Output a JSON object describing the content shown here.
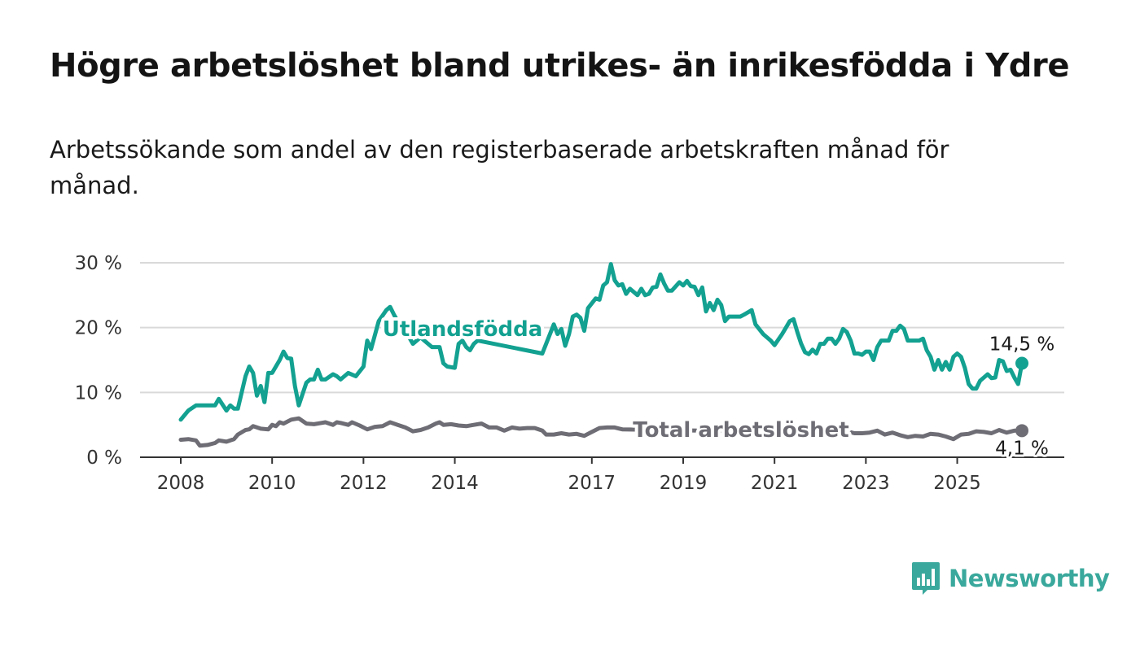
{
  "title": "Högre arbetslöshet bland utrikes- än inrikesfödda i Ydre",
  "subtitle": "Arbetssökande som andel av den registerbaserade arbetskraften månad för månad.",
  "logo": {
    "text": "Newsworthy",
    "icon": "bar-chart-speech-bubble-icon",
    "color": "#3aa89c"
  },
  "chart_data": {
    "type": "line",
    "title": "Högre arbetslöshet bland utrikes- än inrikesfödda i Ydre",
    "subtitle": "Arbetssökande som andel av den registerbaserade arbetskraften månad för månad.",
    "ylabel": "",
    "xlabel": "",
    "ylim": [
      0,
      30
    ],
    "y_ticks": [
      0,
      10,
      20,
      30
    ],
    "y_tick_labels": [
      "0 %",
      "10 %",
      "20 %",
      "30 %"
    ],
    "x_range": [
      "2008-01",
      "2026-06"
    ],
    "x_ticks": [
      "2008-01",
      "2010-01",
      "2012-01",
      "2014-01",
      "2017-01",
      "2019-01",
      "2021-01",
      "2023-01",
      "2025-01"
    ],
    "x_tick_labels": [
      "2008",
      "2010",
      "2012",
      "2014",
      "2017",
      "2019",
      "2021",
      "2023",
      "2025"
    ],
    "grid": true,
    "series": [
      {
        "name": "Utlandsfödda",
        "color": "#13a191",
        "end_label": "14,5 %",
        "points": [
          [
            "2008-01",
            5.8
          ],
          [
            "2008-03",
            7.2
          ],
          [
            "2008-05",
            8
          ],
          [
            "2008-08",
            8
          ],
          [
            "2008-10",
            8
          ],
          [
            "2008-11",
            9
          ],
          [
            "2009-01",
            7.2
          ],
          [
            "2009-02",
            8
          ],
          [
            "2009-03",
            7.5
          ],
          [
            "2009-04",
            7.5
          ],
          [
            "2009-06",
            12.5
          ],
          [
            "2009-07",
            14
          ],
          [
            "2009-08",
            13
          ],
          [
            "2009-09",
            9.5
          ],
          [
            "2009-10",
            11
          ],
          [
            "2009-11",
            8.5
          ],
          [
            "2009-12",
            13
          ],
          [
            "2010-01",
            13
          ],
          [
            "2010-03",
            15
          ],
          [
            "2010-04",
            16.3
          ],
          [
            "2010-05",
            15.3
          ],
          [
            "2010-06",
            15.2
          ],
          [
            "2010-07",
            11
          ],
          [
            "2010-08",
            8
          ],
          [
            "2010-10",
            11.5
          ],
          [
            "2010-11",
            12
          ],
          [
            "2010-12",
            12
          ],
          [
            "2011-01",
            13.5
          ],
          [
            "2011-02",
            12
          ],
          [
            "2011-03",
            12
          ],
          [
            "2011-05",
            12.8
          ],
          [
            "2011-06",
            12.5
          ],
          [
            "2011-07",
            12
          ],
          [
            "2011-09",
            13
          ],
          [
            "2011-11",
            12.5
          ],
          [
            "2012-01",
            14
          ],
          [
            "2012-02",
            18
          ],
          [
            "2012-03",
            16.7
          ],
          [
            "2012-05",
            21
          ],
          [
            "2012-07",
            22.7
          ],
          [
            "2012-08",
            23.2
          ],
          [
            "2012-09",
            22
          ],
          [
            "2012-11",
            20
          ],
          [
            "2013-01",
            18.5
          ],
          [
            "2013-02",
            17.5
          ],
          [
            "2013-04",
            18.5
          ],
          [
            "2013-05",
            18
          ],
          [
            "2013-07",
            17
          ],
          [
            "2013-09",
            17
          ],
          [
            "2013-10",
            14.5
          ],
          [
            "2013-11",
            14
          ],
          [
            "2014-01",
            13.8
          ],
          [
            "2014-02",
            17.5
          ],
          [
            "2014-03",
            18
          ],
          [
            "2014-04",
            17
          ],
          [
            "2014-05",
            16.5
          ],
          [
            "2014-06",
            17.5
          ],
          [
            "2014-07",
            18
          ],
          [
            "2015-12",
            16
          ],
          [
            "2016-01",
            17.5
          ],
          [
            "2016-03",
            20.5
          ],
          [
            "2016-04",
            19
          ],
          [
            "2016-05",
            19.8
          ],
          [
            "2016-06",
            17.2
          ],
          [
            "2016-07",
            19
          ],
          [
            "2016-08",
            21.7
          ],
          [
            "2016-09",
            22
          ],
          [
            "2016-10",
            21.5
          ],
          [
            "2016-11",
            19.5
          ],
          [
            "2016-12",
            23
          ],
          [
            "2017-02",
            24.5
          ],
          [
            "2017-03",
            24.3
          ],
          [
            "2017-04",
            26.5
          ],
          [
            "2017-05",
            27
          ],
          [
            "2017-06",
            29.8
          ],
          [
            "2017-07",
            27.3
          ],
          [
            "2017-08",
            26.5
          ],
          [
            "2017-09",
            26.7
          ],
          [
            "2017-10",
            25.2
          ],
          [
            "2017-11",
            26
          ],
          [
            "2018-01",
            25
          ],
          [
            "2018-02",
            26
          ],
          [
            "2018-03",
            25
          ],
          [
            "2018-04",
            25.2
          ],
          [
            "2018-05",
            26.2
          ],
          [
            "2018-06",
            26.3
          ],
          [
            "2018-07",
            28.2
          ],
          [
            "2018-08",
            26.8
          ],
          [
            "2018-09",
            25.7
          ],
          [
            "2018-10",
            25.7
          ],
          [
            "2018-12",
            27
          ],
          [
            "2019-01",
            26.5
          ],
          [
            "2019-02",
            27.2
          ],
          [
            "2019-03",
            26.4
          ],
          [
            "2019-04",
            26.3
          ],
          [
            "2019-05",
            25
          ],
          [
            "2019-06",
            26.2
          ],
          [
            "2019-07",
            22.5
          ],
          [
            "2019-08",
            23.8
          ],
          [
            "2019-09",
            22.7
          ],
          [
            "2019-10",
            24.3
          ],
          [
            "2019-11",
            23.5
          ],
          [
            "2019-12",
            21
          ],
          [
            "2020-01",
            21.7
          ],
          [
            "2020-04",
            21.7
          ],
          [
            "2020-05",
            22
          ],
          [
            "2020-07",
            22.7
          ],
          [
            "2020-08",
            20.5
          ],
          [
            "2020-10",
            19
          ],
          [
            "2020-12",
            18
          ],
          [
            "2021-01",
            17.3
          ],
          [
            "2021-03",
            19
          ],
          [
            "2021-04",
            20
          ],
          [
            "2021-05",
            21
          ],
          [
            "2021-06",
            21.3
          ],
          [
            "2021-07",
            19.3
          ],
          [
            "2021-08",
            17.5
          ],
          [
            "2021-09",
            16.2
          ],
          [
            "2021-10",
            15.9
          ],
          [
            "2021-11",
            16.6
          ],
          [
            "2021-12",
            16
          ],
          [
            "2022-01",
            17.5
          ],
          [
            "2022-02",
            17.5
          ],
          [
            "2022-03",
            18.3
          ],
          [
            "2022-04",
            18.3
          ],
          [
            "2022-05",
            17.5
          ],
          [
            "2022-06",
            18.3
          ],
          [
            "2022-07",
            19.8
          ],
          [
            "2022-08",
            19.3
          ],
          [
            "2022-09",
            18
          ],
          [
            "2022-10",
            16
          ],
          [
            "2022-11",
            16
          ],
          [
            "2022-12",
            15.8
          ],
          [
            "2023-01",
            16.3
          ],
          [
            "2023-02",
            16.3
          ],
          [
            "2023-03",
            15
          ],
          [
            "2023-04",
            17
          ],
          [
            "2023-05",
            18
          ],
          [
            "2023-06",
            18
          ],
          [
            "2023-07",
            18
          ],
          [
            "2023-08",
            19.5
          ],
          [
            "2023-09",
            19.5
          ],
          [
            "2023-10",
            20.3
          ],
          [
            "2023-11",
            19.8
          ],
          [
            "2023-12",
            18
          ],
          [
            "2024-01",
            18
          ],
          [
            "2024-02",
            18
          ],
          [
            "2024-03",
            18
          ],
          [
            "2024-04",
            18.3
          ],
          [
            "2024-05",
            16.5
          ],
          [
            "2024-06",
            15.5
          ],
          [
            "2024-07",
            13.5
          ],
          [
            "2024-08",
            15
          ],
          [
            "2024-09",
            13.5
          ],
          [
            "2024-10",
            14.7
          ],
          [
            "2024-11",
            13.5
          ],
          [
            "2024-12",
            15.5
          ],
          [
            "2025-01",
            16
          ],
          [
            "2025-02",
            15.5
          ],
          [
            "2025-03",
            13.8
          ],
          [
            "2025-04",
            11.3
          ],
          [
            "2025-05",
            10.6
          ],
          [
            "2025-06",
            10.6
          ],
          [
            "2025-07",
            11.8
          ],
          [
            "2025-08",
            12.3
          ],
          [
            "2025-09",
            12.8
          ],
          [
            "2025-10",
            12.2
          ],
          [
            "2025-11",
            12.3
          ],
          [
            "2025-12",
            15
          ],
          [
            "2026-01",
            14.8
          ],
          [
            "2026-02",
            13.3
          ],
          [
            "2026-03",
            13.5
          ],
          [
            "2026-04",
            12.3
          ],
          [
            "2026-05",
            11.3
          ],
          [
            "2026-06",
            14.5
          ]
        ]
      },
      {
        "name": "Total arbetslöshet",
        "color": "#6e6c74",
        "end_label": "4,1 %",
        "points": [
          [
            "2008-01",
            2.7
          ],
          [
            "2008-03",
            2.8
          ],
          [
            "2008-05",
            2.6
          ],
          [
            "2008-06",
            1.8
          ],
          [
            "2008-08",
            1.9
          ],
          [
            "2008-10",
            2.2
          ],
          [
            "2008-11",
            2.6
          ],
          [
            "2009-01",
            2.4
          ],
          [
            "2009-03",
            2.8
          ],
          [
            "2009-04",
            3.5
          ],
          [
            "2009-06",
            4.2
          ],
          [
            "2009-07",
            4.3
          ],
          [
            "2009-08",
            4.8
          ],
          [
            "2009-10",
            4.4
          ],
          [
            "2009-12",
            4.3
          ],
          [
            "2010-01",
            5
          ],
          [
            "2010-02",
            4.8
          ],
          [
            "2010-03",
            5.4
          ],
          [
            "2010-04",
            5.2
          ],
          [
            "2010-06",
            5.8
          ],
          [
            "2010-08",
            6
          ],
          [
            "2010-10",
            5.2
          ],
          [
            "2010-12",
            5.1
          ],
          [
            "2011-02",
            5.3
          ],
          [
            "2011-03",
            5.4
          ],
          [
            "2011-05",
            5
          ],
          [
            "2011-06",
            5.4
          ],
          [
            "2011-07",
            5.3
          ],
          [
            "2011-09",
            5
          ],
          [
            "2011-10",
            5.4
          ],
          [
            "2011-12",
            4.9
          ],
          [
            "2012-02",
            4.3
          ],
          [
            "2012-04",
            4.7
          ],
          [
            "2012-06",
            4.8
          ],
          [
            "2012-08",
            5.4
          ],
          [
            "2012-10",
            5
          ],
          [
            "2012-12",
            4.6
          ],
          [
            "2013-02",
            4
          ],
          [
            "2013-04",
            4.2
          ],
          [
            "2013-06",
            4.6
          ],
          [
            "2013-08",
            5.2
          ],
          [
            "2013-09",
            5.4
          ],
          [
            "2013-10",
            5
          ],
          [
            "2013-12",
            5.1
          ],
          [
            "2014-02",
            4.9
          ],
          [
            "2014-04",
            4.8
          ],
          [
            "2014-06",
            5
          ],
          [
            "2014-08",
            5.2
          ],
          [
            "2014-10",
            4.6
          ],
          [
            "2014-12",
            4.6
          ],
          [
            "2015-02",
            4.1
          ],
          [
            "2015-04",
            4.6
          ],
          [
            "2015-06",
            4.4
          ],
          [
            "2015-08",
            4.5
          ],
          [
            "2015-10",
            4.5
          ],
          [
            "2015-12",
            4.1
          ],
          [
            "2016-01",
            3.5
          ],
          [
            "2016-03",
            3.5
          ],
          [
            "2016-05",
            3.7
          ],
          [
            "2016-07",
            3.5
          ],
          [
            "2016-09",
            3.6
          ],
          [
            "2016-11",
            3.3
          ],
          [
            "2017-01",
            3.9
          ],
          [
            "2017-03",
            4.5
          ],
          [
            "2017-05",
            4.6
          ],
          [
            "2017-07",
            4.6
          ],
          [
            "2017-09",
            4.3
          ],
          [
            "2021-12",
            3.8
          ],
          [
            "2022-02",
            3.7
          ],
          [
            "2022-04",
            3.6
          ],
          [
            "2022-06",
            3.8
          ],
          [
            "2022-08",
            4
          ],
          [
            "2022-10",
            3.7
          ],
          [
            "2022-12",
            3.7
          ],
          [
            "2023-02",
            3.8
          ],
          [
            "2023-04",
            4.1
          ],
          [
            "2023-06",
            3.5
          ],
          [
            "2023-08",
            3.8
          ],
          [
            "2023-10",
            3.4
          ],
          [
            "2023-12",
            3.1
          ],
          [
            "2024-02",
            3.3
          ],
          [
            "2024-04",
            3.2
          ],
          [
            "2024-06",
            3.6
          ],
          [
            "2024-08",
            3.5
          ],
          [
            "2024-10",
            3.2
          ],
          [
            "2024-12",
            2.8
          ],
          [
            "2025-02",
            3.5
          ],
          [
            "2025-04",
            3.6
          ],
          [
            "2025-06",
            4
          ],
          [
            "2025-08",
            3.9
          ],
          [
            "2025-10",
            3.7
          ],
          [
            "2025-12",
            4.2
          ],
          [
            "2026-02",
            3.8
          ],
          [
            "2026-04",
            4.1
          ],
          [
            "2026-06",
            4.1
          ]
        ]
      }
    ]
  }
}
